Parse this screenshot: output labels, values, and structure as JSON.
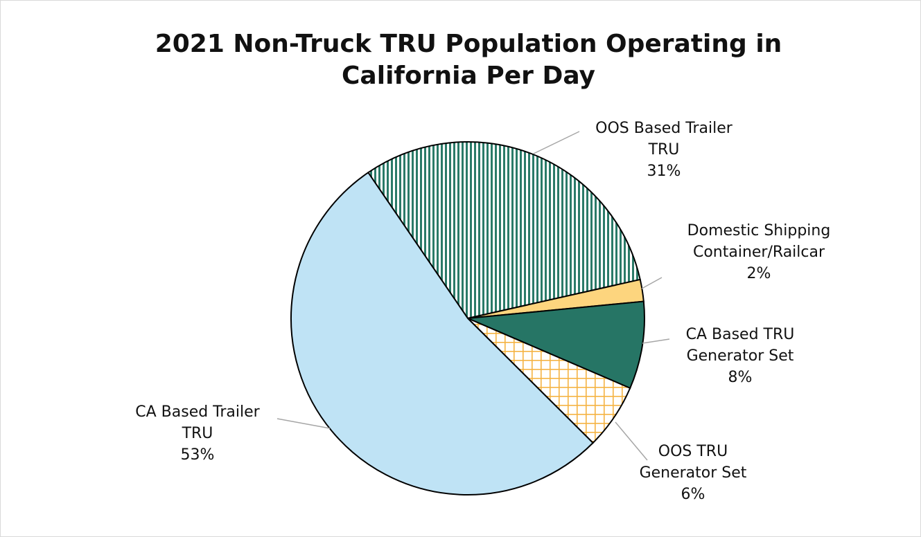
{
  "chart_data": {
    "type": "pie",
    "title": "2021 Non-Truck TRU Population Operating in California Per Day",
    "categories": [
      "OOS Based Trailer TRU",
      "Domestic Shipping Container/Railcar",
      "CA Based TRU Generator Set",
      "OOS TRU Generator Set",
      "CA Based Trailer TRU"
    ],
    "values": [
      31,
      2,
      8,
      6,
      53
    ],
    "value_labels": [
      "31%",
      "2%",
      "8%",
      "6%",
      "53%"
    ],
    "colors": [
      "#2a7a68",
      "#fdd57e",
      "#267565",
      "#f5b342",
      "#bfe3f5"
    ],
    "patterns": [
      "vertical",
      null,
      null,
      "crosshatch",
      null
    ]
  }
}
